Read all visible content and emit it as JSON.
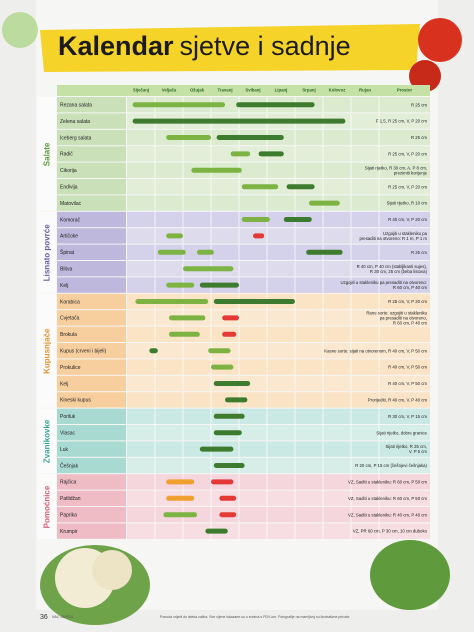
{
  "title_bold": "Kalendar",
  "title_rest": "sjetve i sadnje",
  "months": [
    "Siječanj",
    "Veljača",
    "Ožujak",
    "Travanj",
    "Svibanj",
    "Lipanj",
    "Srpanj",
    "Kolovoz",
    "Rujan"
  ],
  "note_header": "Prostor",
  "bar_colors": {
    "light": "#7cb342",
    "dark": "#3d7b2e",
    "orange": "#f0a030",
    "red": "#e53935"
  },
  "groups": [
    {
      "name": "Salate",
      "label_color": "#5a9e3a",
      "row_color": "#dcebd0",
      "name_color": "#c9e0b8",
      "rows": [
        {
          "name": "Rezana salata",
          "note": [
            "R 25 cm"
          ],
          "bars": [
            {
              "start": 0.2,
              "end": 3.5,
              "kind": "light"
            },
            {
              "start": 3.9,
              "end": 6.7,
              "kind": "dark"
            }
          ]
        },
        {
          "name": "Zelena salata",
          "note": [
            "F 1.5, R 25 cm, V, P 20 cm"
          ],
          "bars": [
            {
              "start": 0.2,
              "end": 7.8,
              "kind": "dark"
            }
          ]
        },
        {
          "name": "Iceberg salata",
          "note": [
            "R 25 cm"
          ],
          "bars": [
            {
              "start": 1.4,
              "end": 3,
              "kind": "light"
            },
            {
              "start": 3.2,
              "end": 5.6,
              "kind": "dark"
            }
          ]
        },
        {
          "name": "Radič",
          "note": [
            "R 25 cm, V, P 20 cm"
          ],
          "bars": [
            {
              "start": 3.7,
              "end": 4.4,
              "kind": "light"
            },
            {
              "start": 4.7,
              "end": 5.6,
              "kind": "dark"
            }
          ]
        },
        {
          "name": "Cikorija",
          "note": [
            "Sijati rijetko, R 30 cm, A, P 8 cm,",
            "prezimiti korijenje"
          ],
          "bars": [
            {
              "start": 2.3,
              "end": 4.1,
              "kind": "light"
            }
          ]
        },
        {
          "name": "Endivija",
          "note": [
            "R 25 cm, V, P 20 cm"
          ],
          "bars": [
            {
              "start": 4.1,
              "end": 5.4,
              "kind": "light"
            },
            {
              "start": 5.7,
              "end": 6.7,
              "kind": "dark"
            }
          ]
        },
        {
          "name": "Matovilac",
          "note": [
            "Sijati rijetko, R 10 cm"
          ],
          "bars": [
            {
              "start": 6.5,
              "end": 7.6,
              "kind": "light"
            }
          ]
        }
      ]
    },
    {
      "name": "Lisnato povrće",
      "label_color": "#6b5fa8",
      "row_color": "#d4d1ea",
      "name_color": "#bdb8dc",
      "rows": [
        {
          "name": "Komorač",
          "note": [
            "R 40 cm, V, P 20 cm"
          ],
          "bars": [
            {
              "start": 4.1,
              "end": 5.1,
              "kind": "light"
            },
            {
              "start": 5.6,
              "end": 6.6,
              "kind": "dark"
            }
          ]
        },
        {
          "name": "Artičoke",
          "note": [
            "Uzgojiti u stakleniku pa",
            "presaditi na otvoreno: R 1 m, P 1 m"
          ],
          "bars": [
            {
              "start": 1.4,
              "end": 2,
              "kind": "light"
            },
            {
              "start": 4.5,
              "end": 4.9,
              "kind": "red"
            }
          ]
        },
        {
          "name": "Špinat",
          "note": [
            "R 25 cm"
          ],
          "bars": [
            {
              "start": 1.1,
              "end": 2.1,
              "kind": "light"
            },
            {
              "start": 2.5,
              "end": 3.1,
              "kind": "light"
            },
            {
              "start": 6.4,
              "end": 7.7,
              "kind": "dark"
            }
          ]
        },
        {
          "name": "Blitva",
          "note": [
            "R 40 cm, P 40 cm (stabljikasti sujes),",
            "R 30 cm, 25 cm (beba listova)"
          ],
          "bars": [
            {
              "start": 2,
              "end": 3.8,
              "kind": "light"
            }
          ]
        },
        {
          "name": "Kelj",
          "note": [
            "Uzgojiti u stakleniku pa presaditi na otvoreno:",
            "R 60 cm, P 40 cm"
          ],
          "bars": [
            {
              "start": 1.4,
              "end": 2.4,
              "kind": "light"
            },
            {
              "start": 2.6,
              "end": 4,
              "kind": "dark"
            }
          ]
        }
      ]
    },
    {
      "name": "Kupusnjače",
      "label_color": "#e8922e",
      "row_color": "#fbe3c6",
      "name_color": "#f7cf9f",
      "rows": [
        {
          "name": "Korabica",
          "note": [
            "R 25 cm, V, P 20 cm"
          ],
          "bars": [
            {
              "start": 0.3,
              "end": 2.9,
              "kind": "light"
            },
            {
              "start": 3.1,
              "end": 6,
              "kind": "dark"
            }
          ]
        },
        {
          "name": "Cvjetača",
          "note": [
            "Rane sorte: uzgojiti u stakleniku",
            "pa presaditi na otvoreno,",
            "R 60 cm, P 40 cm"
          ],
          "bars": [
            {
              "start": 1.5,
              "end": 2.8,
              "kind": "light"
            },
            {
              "start": 3.4,
              "end": 4,
              "kind": "red"
            }
          ]
        },
        {
          "name": "Brokula",
          "bars": [
            {
              "start": 1.5,
              "end": 2.6,
              "kind": "light"
            },
            {
              "start": 3.4,
              "end": 3.9,
              "kind": "red"
            }
          ]
        },
        {
          "name": "Kupus (crveni i bijeli)",
          "note": [
            "Kasne sorte: sijati na otvorenom, R 40 cm, V, P 50 cm"
          ],
          "bars": [
            {
              "start": 0.8,
              "end": 1.1,
              "kind": "dark"
            },
            {
              "start": 2.9,
              "end": 3.7,
              "kind": "light"
            }
          ]
        },
        {
          "name": "Prokulice",
          "note": [
            "R 40 cm, V, P 50 cm"
          ],
          "bars": [
            {
              "start": 3,
              "end": 3.8,
              "kind": "light"
            }
          ]
        },
        {
          "name": "Kelj",
          "note": [
            "R 40 cm, V, P 50 cm"
          ],
          "bars": [
            {
              "start": 3.1,
              "end": 4.4,
              "kind": "dark"
            }
          ]
        },
        {
          "name": "Kineski kupus",
          "note": [
            "Prorijediti, R 40 cm, V, P 40 cm"
          ],
          "bars": [
            {
              "start": 3.5,
              "end": 4.3,
              "kind": "dark"
            }
          ]
        }
      ]
    },
    {
      "name": "Zvanikovke",
      "label_color": "#3aa597",
      "row_color": "#cbe9e4",
      "name_color": "#a9dad2",
      "rows": [
        {
          "name": "Poriluk",
          "note": [
            "R 30 cm, V, P 15 cm"
          ],
          "bars": [
            {
              "start": 3.1,
              "end": 4.2,
              "kind": "dark"
            }
          ]
        },
        {
          "name": "Vlasac",
          "note": [
            "Sijati rijetko, dobre granice"
          ],
          "bars": [
            {
              "start": 3.1,
              "end": 4.1,
              "kind": "dark"
            }
          ]
        },
        {
          "name": "Luk",
          "note": [
            "Sijati rijetko, R 25 cm,",
            "V, P 5 cm"
          ],
          "bars": [
            {
              "start": 2.6,
              "end": 3.8,
              "kind": "dark"
            }
          ]
        },
        {
          "name": "Češnjak",
          "note": [
            "R 20 cm, P 15 cm (češnjevi češnjaka)"
          ],
          "bars": [
            {
              "start": 3.1,
              "end": 4.2,
              "kind": "dark"
            }
          ]
        }
      ]
    },
    {
      "name": "Pomoćnice",
      "label_color": "#d9607a",
      "row_color": "#f5d6dc",
      "name_color": "#efbcc6",
      "rows": [
        {
          "name": "Rajčica",
          "note": [
            "VZ, Saditi u stakleniku: R 60 cm, P 50 cm"
          ],
          "bars": [
            {
              "start": 1.4,
              "end": 2.4,
              "kind": "orange"
            },
            {
              "start": 3,
              "end": 3.8,
              "kind": "red"
            }
          ]
        },
        {
          "name": "Patlidžan",
          "note": [
            "VZ, Saditi u stakleniku: R 60 cm, P 50 cm"
          ],
          "bars": [
            {
              "start": 1.4,
              "end": 2.4,
              "kind": "orange"
            },
            {
              "start": 3.3,
              "end": 3.9,
              "kind": "red"
            }
          ]
        },
        {
          "name": "Paprika",
          "note": [
            "VZ, Saditi u stakleniku: R 40 cm, P 40 cm"
          ],
          "bars": [
            {
              "start": 1.3,
              "end": 2.5,
              "kind": "light"
            },
            {
              "start": 3.3,
              "end": 3.9,
              "kind": "red"
            }
          ]
        },
        {
          "name": "Krumpir",
          "note": [
            "VZ, PR 60 cm, P 30 cm, 10 cm duboko"
          ],
          "bars": [
            {
              "start": 2.8,
              "end": 3.6,
              "kind": "dark"
            }
          ]
        }
      ]
    }
  ],
  "footer": {
    "page": "36",
    "issue": "NAC 05/2024",
    "fine_print": "Ponuda vrijedi do isteka zaliha. Sve cijene iskazane su u eurima s PDV-om. Fotografije na mamljivoj su ilustrativne prirode."
  }
}
